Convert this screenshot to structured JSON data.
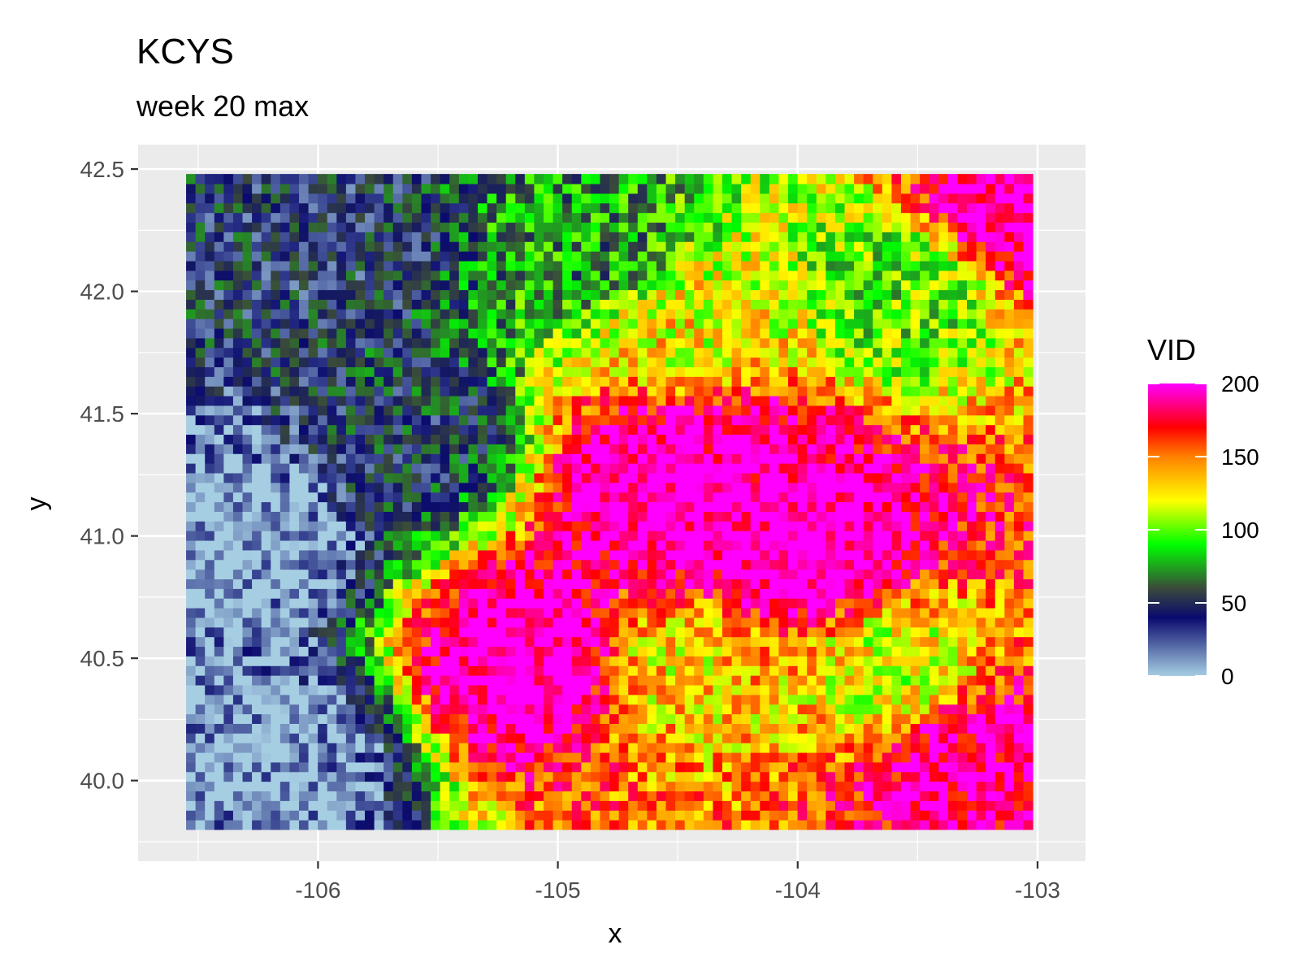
{
  "chart_data": {
    "type": "heatmap",
    "title": "KCYS",
    "subtitle": "week 20 max",
    "xlabel": "x",
    "ylabel": "y",
    "xlim": [
      -106.75,
      -102.8
    ],
    "ylim": [
      39.67,
      42.6
    ],
    "x_ticks": [
      -106,
      -105,
      -104,
      -103
    ],
    "x_tick_labels": [
      "-106",
      "-105",
      "-104",
      "-103"
    ],
    "y_ticks": [
      40.0,
      40.5,
      41.0,
      41.5,
      42.0,
      42.5
    ],
    "y_tick_labels": [
      "40.0",
      "40.5",
      "41.0",
      "41.5",
      "42.0",
      "42.5"
    ],
    "data_extent": {
      "x": [
        -106.55,
        -103.02
      ],
      "y": [
        39.8,
        42.48
      ]
    },
    "grid": true,
    "legend": {
      "title": "VID",
      "position": "right",
      "ticks": [
        0,
        50,
        100,
        150,
        200
      ],
      "tick_labels": [
        "0",
        "50",
        "100",
        "150",
        "200"
      ],
      "range": [
        0,
        200
      ],
      "colors": [
        {
          "value": 0,
          "color": "#a6cee3"
        },
        {
          "value": 40,
          "color": "#0a0a6e"
        },
        {
          "value": 60,
          "color": "#3a4a3a"
        },
        {
          "value": 90,
          "color": "#00ff00"
        },
        {
          "value": 120,
          "color": "#ffff00"
        },
        {
          "value": 150,
          "color": "#ff8000"
        },
        {
          "value": 170,
          "color": "#ff0000"
        },
        {
          "value": 200,
          "color": "#ff00ff"
        }
      ]
    },
    "regions": [
      {
        "x": -104.55,
        "y": 41.2,
        "value": 205
      },
      {
        "x": -105.1,
        "y": 40.5,
        "value": 205
      },
      {
        "x": -103.95,
        "y": 40.95,
        "value": 205
      },
      {
        "x": -104.35,
        "y": 41.35,
        "value": 195
      },
      {
        "x": -103.05,
        "y": 42.35,
        "value": 200
      },
      {
        "x": -103.3,
        "y": 40.1,
        "value": 190
      },
      {
        "x": -103.6,
        "y": 40.45,
        "value": 120
      },
      {
        "x": -104.5,
        "y": 40.45,
        "value": 130
      },
      {
        "x": -104.4,
        "y": 41.8,
        "value": 125
      },
      {
        "x": -105.6,
        "y": 41.4,
        "value": 45
      },
      {
        "x": -105.9,
        "y": 42.2,
        "value": 40
      },
      {
        "x": -106.3,
        "y": 41.0,
        "value": 0
      },
      {
        "x": -106.2,
        "y": 40.1,
        "value": 5
      },
      {
        "x": -104.9,
        "y": 42.2,
        "value": 75
      },
      {
        "x": -103.6,
        "y": 42.0,
        "value": 95
      }
    ]
  }
}
